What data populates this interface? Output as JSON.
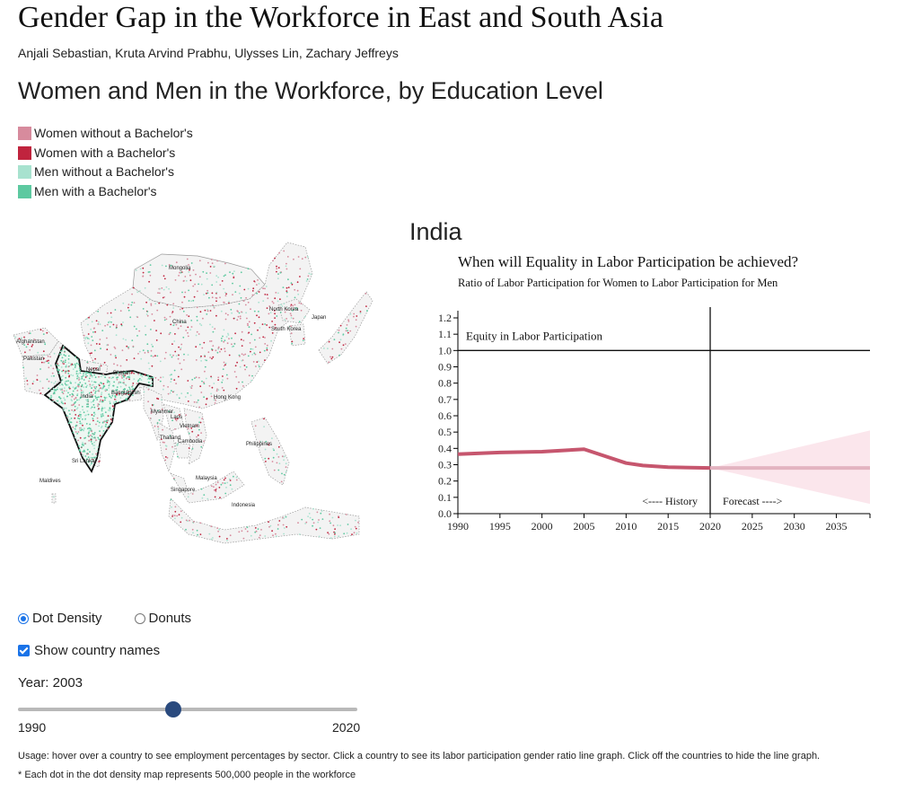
{
  "page": {
    "title": "Gender Gap in the Workforce in East and South Asia",
    "authors": "Anjali Sebastian, Kruta Arvind Prabhu, Ulysses Lin, Zachary Jeffreys",
    "section_title": "Women and Men in the Workforce, by Education Level"
  },
  "legend": [
    {
      "label": "Women without a Bachelor's",
      "color": "#d78b9d"
    },
    {
      "label": "Women with a Bachelor's",
      "color": "#c0243e"
    },
    {
      "label": "Men without a Bachelor's",
      "color": "#a8e2cf"
    },
    {
      "label": "Men with a Bachelor's",
      "color": "#5dc9a0"
    }
  ],
  "map": {
    "labels": [
      "Mongolia",
      "China",
      "North Korea",
      "Japan",
      "South Korea",
      "Afghanistan",
      "Pakistan",
      "Nepal",
      "Bhutan",
      "India",
      "Bangladesh",
      "Hong Kong",
      "Myanmar",
      "Laos",
      "Vietnam",
      "Thailand",
      "Cambodia",
      "Philippines",
      "Sri Lanka",
      "Maldives",
      "Malaysia",
      "Singapore",
      "Indonesia"
    ],
    "selected_country": "India"
  },
  "chart_data": {
    "type": "line",
    "country": "India",
    "title": "When will Equality in Labor Participation be achieved?",
    "subtitle": "Ratio of Labor Participation for Women to Labor Participation for Men",
    "xlabel": "",
    "ylabel": "",
    "xlim": [
      1990,
      2039
    ],
    "ylim": [
      0.0,
      1.2
    ],
    "x_ticks": [
      "1990",
      "1995",
      "2000",
      "2005",
      "2010",
      "2015",
      "2020",
      "2025",
      "2030",
      "2035"
    ],
    "y_ticks": [
      "0.0",
      "0.1",
      "0.2",
      "0.3",
      "0.4",
      "0.5",
      "0.6",
      "0.7",
      "0.8",
      "0.9",
      "1.0",
      "1.1",
      "1.2"
    ],
    "equality_label": "Equity in Labor Participation",
    "equality_value": 1.0,
    "divider_year": 2020,
    "history_label": "<---- History",
    "forecast_label": "Forecast ---->",
    "series": [
      {
        "points": [
          [
            1990,
            0.365
          ],
          [
            1995,
            0.375
          ],
          [
            2000,
            0.38
          ],
          [
            2005,
            0.395
          ],
          [
            2010,
            0.31
          ],
          [
            2012,
            0.295
          ],
          [
            2015,
            0.285
          ],
          [
            2020,
            0.28
          ]
        ]
      },
      {
        "points": [
          [
            2020,
            0.28
          ],
          [
            2025,
            0.28
          ],
          [
            2030,
            0.28
          ],
          [
            2035,
            0.28
          ],
          [
            2039,
            0.28
          ]
        ],
        "band_upper": [
          [
            2020,
            0.28
          ],
          [
            2039,
            0.51
          ]
        ],
        "band_lower": [
          [
            2020,
            0.28
          ],
          [
            2039,
            0.06
          ]
        ]
      }
    ],
    "colors": {
      "history": "#c6566e",
      "forecast": "#e3b3c0",
      "band": "#fbe6ec"
    }
  },
  "controls": {
    "view_options": [
      "Dot Density",
      "Donuts"
    ],
    "selected_view": "Dot Density",
    "show_names_label": "Show country names",
    "show_names_checked": true,
    "year_label": "Year: 2003",
    "year_value": 2003,
    "slider_min_label": "1990",
    "slider_max_label": "2020"
  },
  "notes": {
    "usage": "Usage: hover over a country to see employment percentages by sector. Click a country to see its labor participation gender ratio line graph. Click off the countries to hide the line graph.",
    "footnote": "* Each dot in the dot density map represents 500,000 people in the workforce"
  }
}
